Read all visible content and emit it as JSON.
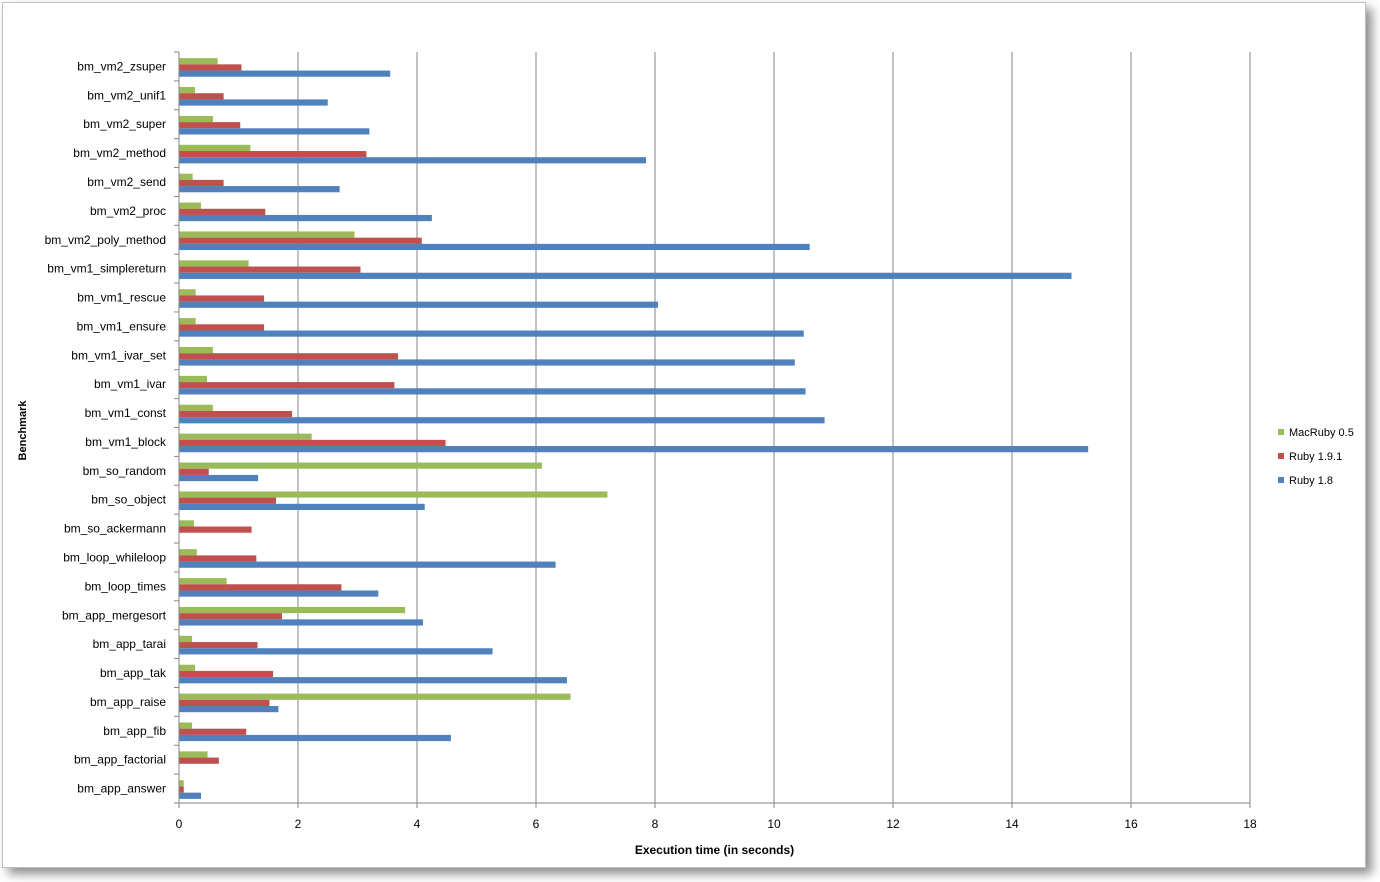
{
  "chart_data": {
    "type": "bar",
    "orientation": "horizontal",
    "title": "",
    "xlabel": "Execution time (in seconds)",
    "ylabel": "Benchmark",
    "xlim": [
      0,
      18
    ],
    "xticks": [
      0,
      2,
      4,
      6,
      8,
      10,
      12,
      14,
      16,
      18
    ],
    "grid": true,
    "legend_position": "right",
    "categories": [
      "bm_vm2_zsuper",
      "bm_vm2_unif1",
      "bm_vm2_super",
      "bm_vm2_method",
      "bm_vm2_send",
      "bm_vm2_proc",
      "bm_vm2_poly_method",
      "bm_vm1_simplereturn",
      "bm_vm1_rescue",
      "bm_vm1_ensure",
      "bm_vm1_ivar_set",
      "bm_vm1_ivar",
      "bm_vm1_const",
      "bm_vm1_block",
      "bm_so_random",
      "bm_so_object",
      "bm_so_ackermann",
      "bm_loop_whileloop",
      "bm_loop_times",
      "bm_app_mergesort",
      "bm_app_tarai",
      "bm_app_tak",
      "bm_app_raise",
      "bm_app_fib",
      "bm_app_factorial",
      "bm_app_answer"
    ],
    "series": [
      {
        "name": "MacRuby 0.5",
        "color": "#9bbb59",
        "values": [
          0.65,
          0.27,
          0.57,
          1.2,
          0.23,
          0.37,
          2.95,
          1.17,
          0.28,
          0.28,
          0.57,
          0.47,
          0.57,
          2.23,
          6.1,
          7.2,
          0.25,
          0.3,
          0.8,
          3.8,
          0.22,
          0.27,
          6.58,
          0.22,
          0.48,
          0.08
        ]
      },
      {
        "name": "Ruby 1.9.1",
        "color": "#c0504d",
        "values": [
          1.05,
          0.75,
          1.03,
          3.15,
          0.75,
          1.45,
          4.08,
          3.05,
          1.43,
          1.43,
          3.68,
          3.62,
          1.9,
          4.48,
          0.5,
          1.63,
          1.22,
          1.3,
          2.73,
          1.73,
          1.32,
          1.58,
          1.52,
          1.13,
          0.67,
          0.08
        ]
      },
      {
        "name": "Ruby 1.8",
        "color": "#4f81bd",
        "values": [
          3.55,
          2.5,
          3.2,
          7.85,
          2.7,
          4.25,
          10.6,
          15.0,
          8.05,
          10.5,
          10.35,
          10.53,
          10.85,
          15.28,
          1.33,
          4.13,
          0,
          6.33,
          3.35,
          4.1,
          5.27,
          6.52,
          1.67,
          4.57,
          0,
          0.37
        ]
      }
    ],
    "legend_order": [
      "MacRuby 0.5",
      "Ruby 1.9.1",
      "Ruby 1.8"
    ]
  }
}
